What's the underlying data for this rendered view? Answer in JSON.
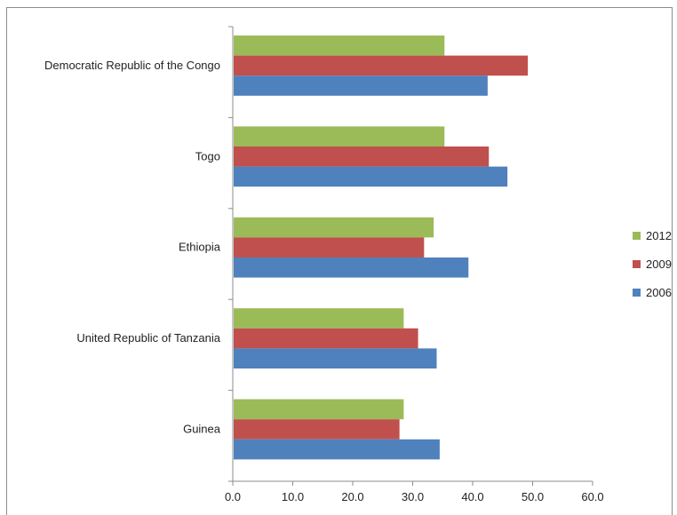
{
  "chart_data": {
    "type": "bar",
    "orientation": "horizontal",
    "categories": [
      "Guinea",
      "United Republic of Tanzania",
      "Ethiopia",
      "Togo",
      "Democratic Republic of the Congo"
    ],
    "series": [
      {
        "name": "2006",
        "color": "#4f81bd",
        "values": [
          34.5,
          34.0,
          39.3,
          45.8,
          42.5
        ]
      },
      {
        "name": "2009",
        "color": "#c0504d",
        "values": [
          27.8,
          30.9,
          31.9,
          42.7,
          49.2
        ]
      },
      {
        "name": "2012",
        "color": "#9bbb59",
        "values": [
          28.5,
          28.5,
          33.5,
          35.3,
          35.3
        ]
      }
    ],
    "xticks": [
      "0.0",
      "10.0",
      "20.0",
      "30.0",
      "40.0",
      "50.0",
      "60.0"
    ],
    "xlim": [
      0,
      60
    ],
    "legend": {
      "placement": "right",
      "order": [
        "2012",
        "2009",
        "2006"
      ]
    },
    "grid": false,
    "title": "",
    "xlabel": "",
    "ylabel": ""
  }
}
